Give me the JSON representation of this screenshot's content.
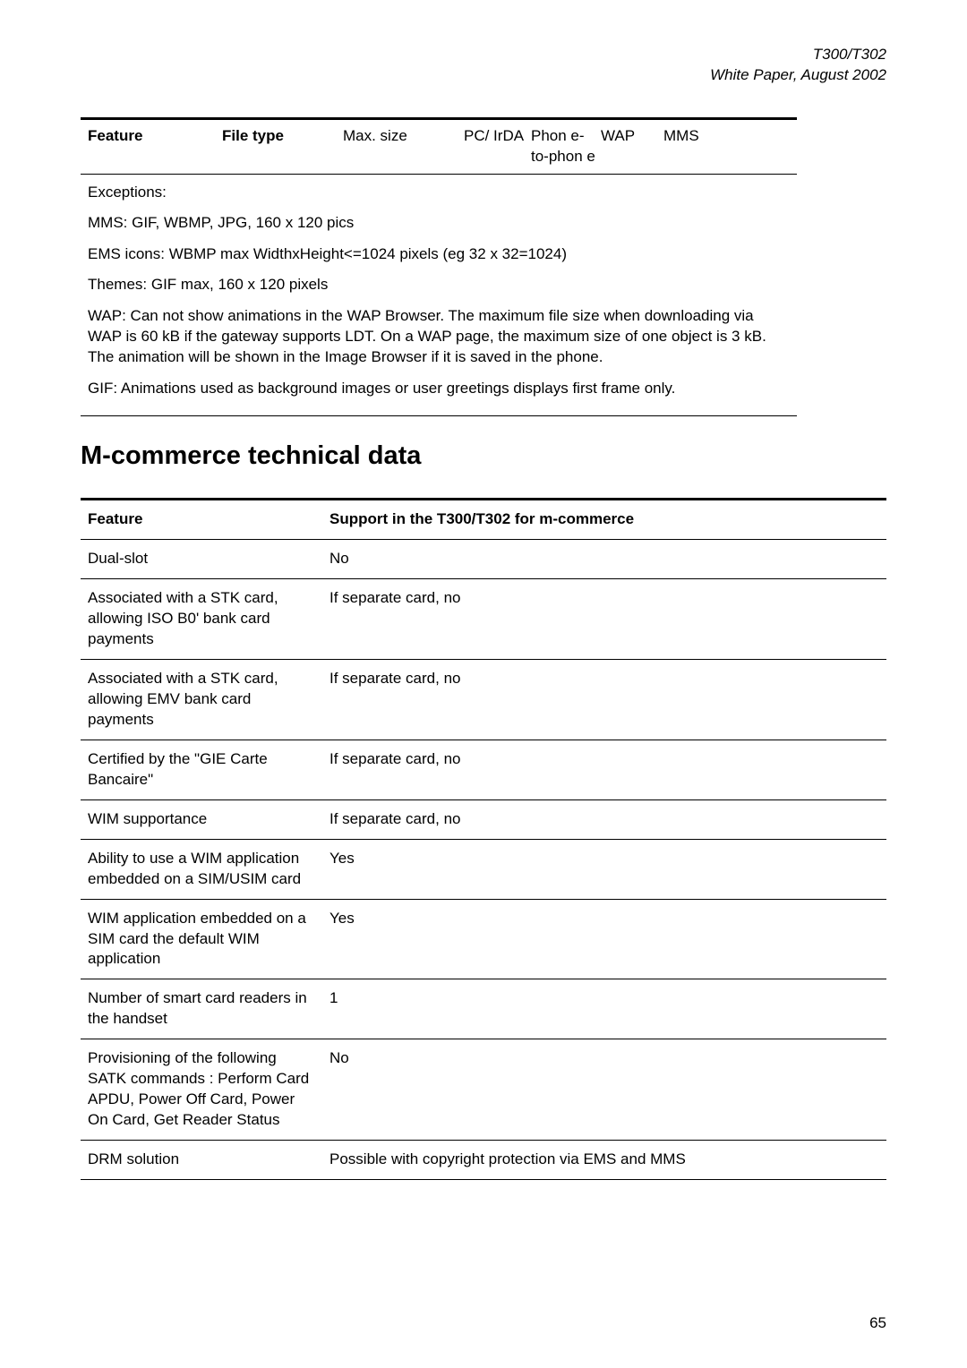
{
  "meta": {
    "product": "T300/T302",
    "docline": "White Paper, August 2002",
    "page_number": "65"
  },
  "smalltable": {
    "cols": {
      "feature": "Feature",
      "filetype": "File type",
      "maxsize": "Max. size",
      "pc": "PC/ IrDA",
      "phon": "Phon e-to-phon e",
      "wap": "WAP",
      "mms": "MMS"
    }
  },
  "exceptions": {
    "title": "Exceptions:",
    "p1": "MMS: GIF, WBMP, JPG, 160 x 120 pics",
    "p2": "EMS icons: WBMP max  WidthxHeight<=1024 pixels (eg 32 x 32=1024)",
    "p3": "Themes: GIF max, 160 x 120 pixels",
    "p4": "WAP: Can not show animations in the WAP Browser. The maximum file size when downloading via WAP is 60 kB if the gateway supports LDT. On a WAP page, the maximum size of one object is 3 kB. The animation will be shown in the Image Browser if it is saved in the phone.",
    "p5": "GIF: Animations used as background images or user greetings displays first frame only."
  },
  "section_heading": "M-commerce technical data",
  "mctable": {
    "head": {
      "feature": "Feature",
      "support": "Support in the T300/T302 for m-commerce"
    },
    "rows": [
      {
        "feature": "Dual-slot",
        "support": "No"
      },
      {
        "feature": "Associated with a STK card, allowing ISO B0' bank card payments",
        "support": "If separate card, no"
      },
      {
        "feature": "Associated with a STK card, allowing EMV bank card payments",
        "support": "If separate card, no"
      },
      {
        "feature": "Certified by the \"GIE Carte Bancaire\"",
        "support": "If separate card, no"
      },
      {
        "feature": "WIM supportance",
        "support": "If separate card, no"
      },
      {
        "feature": "Ability to use a WIM application embedded on a SIM/USIM card",
        "support": "Yes"
      },
      {
        "feature": "WIM application embedded on a SIM card the default WIM application",
        "support": "Yes"
      },
      {
        "feature": "Number of smart card readers in the handset",
        "support": "1"
      },
      {
        "feature": "Provisioning of the following SATK commands : Perform Card APDU, Power Off Card, Power On Card, Get Reader Status",
        "support": "No"
      },
      {
        "feature": "DRM solution",
        "support": "Possible with copyright protection via EMS and MMS"
      }
    ]
  }
}
